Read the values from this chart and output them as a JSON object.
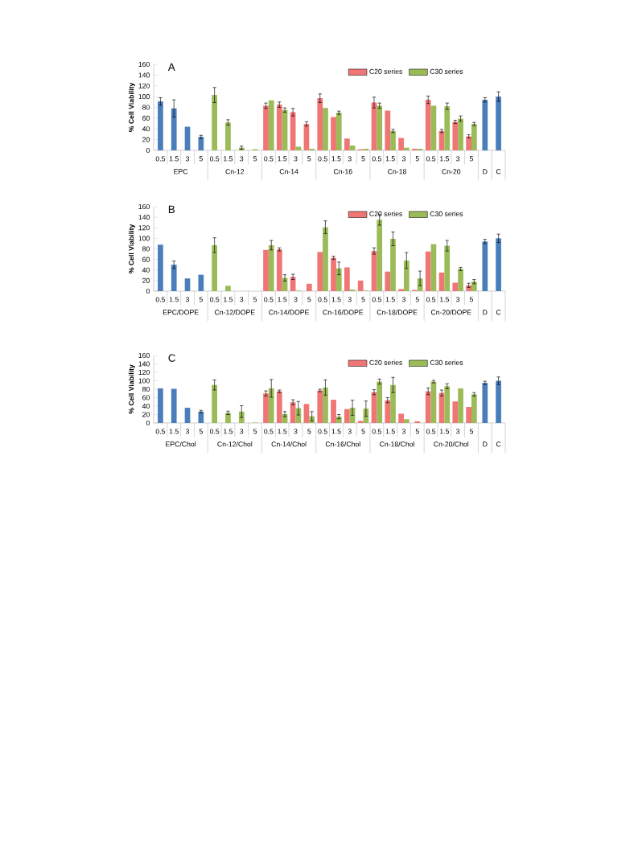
{
  "chart_data": [
    {
      "type": "bar",
      "title": "A",
      "ylabel": "% Cell Viability",
      "ylim": [
        0,
        160
      ],
      "yticks": [
        0,
        20,
        40,
        60,
        80,
        100,
        120,
        140,
        160
      ],
      "legend": "top",
      "categories": [
        "0.5",
        "1.5",
        "3",
        "5",
        "0.5",
        "1.5",
        "3",
        "5",
        "0.5",
        "1.5",
        "3",
        "5",
        "0.5",
        "1.5",
        "3",
        "5",
        "0.5",
        "1.5",
        "3",
        "5",
        "0.5",
        "1.5",
        "3",
        "5",
        null,
        null
      ],
      "annotations": [
        "EPC",
        "Cn-12",
        "Cn-14",
        "Cn-16",
        "Cn-18",
        "Cn-20",
        "D",
        "C"
      ],
      "series": [
        {
          "color": "#4a7ebb",
          "values": [
            91,
            78,
            44,
            25,
            null,
            null,
            null,
            null,
            null,
            null,
            null,
            null,
            null,
            null,
            null,
            null,
            null,
            null,
            null,
            null,
            null,
            null,
            null,
            null,
            94,
            100
          ],
          "errors": [
            7,
            16,
            null,
            3,
            null,
            null,
            null,
            null,
            null,
            null,
            null,
            null,
            null,
            null,
            null,
            null,
            null,
            null,
            null,
            null,
            null,
            null,
            null,
            null,
            4,
            9
          ]
        },
        {
          "name": "C20 series",
          "color": "#f07575",
          "values": [
            null,
            null,
            null,
            null,
            null,
            null,
            null,
            null,
            83,
            85,
            71,
            49,
            97,
            62,
            22,
            2,
            89,
            74,
            23,
            3,
            94,
            36,
            53,
            26,
            null,
            null
          ],
          "errors": [
            null,
            null,
            null,
            null,
            null,
            null,
            null,
            null,
            5,
            5,
            7,
            4,
            8,
            null,
            null,
            null,
            10,
            null,
            null,
            null,
            7,
            3,
            3,
            3,
            null,
            null
          ]
        },
        {
          "name": "C30 series",
          "color": "#9bbb59",
          "values": [
            null,
            null,
            null,
            null,
            103,
            52,
            5,
            2,
            93,
            75,
            7,
            3,
            79,
            70,
            9,
            3,
            83,
            36,
            5,
            3,
            83,
            82,
            59,
            49,
            null,
            null
          ],
          "errors": [
            null,
            null,
            null,
            null,
            14,
            5,
            3,
            null,
            null,
            4,
            null,
            null,
            null,
            3,
            null,
            null,
            5,
            3,
            null,
            null,
            null,
            6,
            5,
            3,
            null,
            null
          ]
        }
      ]
    },
    {
      "type": "bar",
      "title": "B",
      "ylabel": "% Cell Viability",
      "ylim": [
        0,
        160
      ],
      "yticks": [
        0,
        20,
        40,
        60,
        80,
        100,
        120,
        140,
        160
      ],
      "legend": "top",
      "categories": [
        "0.5",
        "1.5",
        "3",
        "5",
        "0.5",
        "1.5",
        "3",
        "5",
        "0.5",
        "1.5",
        "3",
        "5",
        "0.5",
        "1.5",
        "3",
        "5",
        "0.5",
        "1.5",
        "3",
        "5",
        "0.5",
        "1.5",
        "3",
        "5",
        null,
        null
      ],
      "annotations": [
        "EPC/DOPE",
        "Cn-12/DOPE",
        "Cn-14/DOPE",
        "Cn-16/DOPE",
        "Cn-18/DOPE",
        "Cn-20/DOPE",
        "D",
        "C"
      ],
      "series": [
        {
          "color": "#4a7ebb",
          "values": [
            88,
            50,
            24,
            31,
            null,
            null,
            null,
            null,
            null,
            null,
            null,
            null,
            null,
            null,
            null,
            null,
            null,
            null,
            null,
            null,
            null,
            null,
            null,
            null,
            94,
            100
          ],
          "errors": [
            null,
            7,
            null,
            null,
            null,
            null,
            null,
            null,
            null,
            null,
            null,
            null,
            null,
            null,
            null,
            null,
            null,
            null,
            null,
            null,
            null,
            null,
            null,
            null,
            4,
            8
          ]
        },
        {
          "name": "C20 series",
          "color": "#f07575",
          "values": [
            null,
            null,
            null,
            null,
            null,
            null,
            null,
            null,
            78,
            79,
            27,
            14,
            74,
            63,
            45,
            20,
            76,
            37,
            4,
            2,
            75,
            35,
            16,
            11,
            null,
            null
          ],
          "errors": [
            null,
            null,
            null,
            null,
            null,
            null,
            null,
            null,
            null,
            3,
            5,
            null,
            null,
            3,
            null,
            null,
            6,
            null,
            null,
            null,
            null,
            null,
            null,
            4,
            null,
            null
          ]
        },
        {
          "name": "C30 series",
          "color": "#9bbb59",
          "values": [
            null,
            null,
            null,
            null,
            87,
            10,
            null,
            null,
            87,
            25,
            1,
            null,
            121,
            43,
            3,
            1,
            135,
            99,
            58,
            24,
            89,
            86,
            42,
            18,
            null,
            null
          ],
          "errors": [
            null,
            null,
            null,
            null,
            14,
            null,
            null,
            null,
            9,
            6,
            null,
            null,
            12,
            12,
            null,
            null,
            10,
            13,
            15,
            14,
            null,
            10,
            3,
            4,
            null,
            null
          ]
        }
      ]
    },
    {
      "type": "bar",
      "title": "C",
      "ylabel": "% Cell Viability",
      "ylim": [
        0,
        160
      ],
      "yticks": [
        0,
        20,
        40,
        60,
        80,
        100,
        120,
        140,
        160
      ],
      "legend": "top",
      "categories": [
        "0.5",
        "1.5",
        "3",
        "5",
        "0.5",
        "1.5",
        "3",
        "5",
        "0.5",
        "1.5",
        "3",
        "5",
        "0.5",
        "1.5",
        "3",
        "5",
        "0.5",
        "1.5",
        "3",
        "5",
        "0.5",
        "1.5",
        "3",
        "5",
        null,
        null
      ],
      "annotations": [
        "EPC/Chol",
        "Cn-12/Chol",
        "Cn-14/Chol",
        "Cn-16/Chol",
        "Cn-18/Chol",
        "Cn-20/Chol",
        "D",
        "C"
      ],
      "series": [
        {
          "color": "#4a7ebb",
          "values": [
            82,
            81,
            36,
            27,
            null,
            null,
            null,
            null,
            null,
            null,
            null,
            null,
            null,
            null,
            null,
            null,
            null,
            null,
            null,
            null,
            null,
            null,
            null,
            null,
            95,
            100
          ],
          "errors": [
            null,
            null,
            null,
            3,
            null,
            null,
            null,
            null,
            null,
            null,
            null,
            null,
            null,
            null,
            null,
            null,
            null,
            null,
            null,
            null,
            null,
            null,
            null,
            null,
            4,
            9
          ]
        },
        {
          "name": "C20 series",
          "color": "#f07575",
          "values": [
            null,
            null,
            null,
            null,
            null,
            null,
            null,
            null,
            70,
            75,
            49,
            45,
            77,
            55,
            33,
            5,
            73,
            54,
            22,
            4,
            75,
            71,
            51,
            38,
            null,
            null
          ],
          "errors": [
            null,
            null,
            null,
            null,
            null,
            null,
            null,
            null,
            6,
            3,
            6,
            null,
            3,
            null,
            null,
            null,
            6,
            6,
            null,
            null,
            8,
            7,
            null,
            null,
            null,
            null
          ]
        },
        {
          "name": "C30 series",
          "color": "#9bbb59",
          "values": [
            null,
            null,
            null,
            null,
            90,
            24,
            27,
            1,
            82,
            21,
            35,
            16,
            84,
            15,
            36,
            34,
            98,
            90,
            9,
            null,
            98,
            87,
            82,
            68,
            null,
            null
          ],
          "errors": [
            null,
            null,
            null,
            null,
            12,
            4,
            14,
            null,
            21,
            6,
            16,
            11,
            18,
            5,
            18,
            18,
            6,
            18,
            null,
            null,
            3,
            6,
            null,
            4,
            null,
            null
          ]
        }
      ]
    }
  ]
}
